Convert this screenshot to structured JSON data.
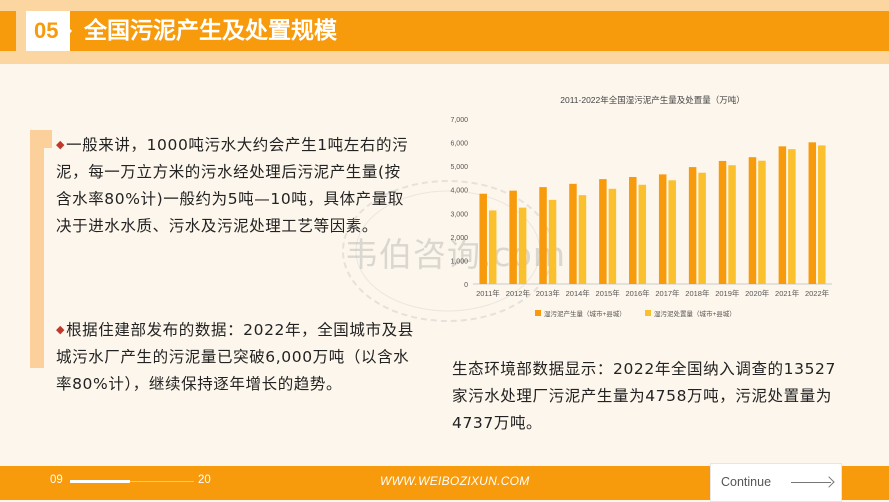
{
  "header": {
    "section_number": "05",
    "title": "全国污泥产生及处置规模"
  },
  "left_content": {
    "paragraph1": "一般来讲，1000吨污水大约会产生1吨左右的污泥，每一万立方米的污水经处理后污泥产生量(按含水率80%计)一般约为5吨—10吨，具体产量取决于进水水质、污水及污泥处理工艺等因素。",
    "paragraph2": "根据住建部发布的数据：2022年，全国城市及县城污水厂产生的污泥量已突破6,000万吨（以含水率80%计），继续保持逐年增长的趋势。",
    "bullet": "◆"
  },
  "watermark": {
    "text": "韦伯咨询.com"
  },
  "chart_data": {
    "type": "bar",
    "title": "2011-2022年全国湿污泥产生量及处置量（万吨）",
    "categories": [
      "2011年",
      "2012年",
      "2013年",
      "2014年",
      "2015年",
      "2016年",
      "2017年",
      "2018年",
      "2019年",
      "2020年",
      "2021年",
      "2022年"
    ],
    "series": [
      {
        "name": "湿污泥产生量（城市+县城）",
        "color": "#f79a0c",
        "values": [
          3830,
          3960,
          4110,
          4250,
          4450,
          4540,
          4650,
          4960,
          5220,
          5380,
          5840,
          6010
        ]
      },
      {
        "name": "湿污泥处置量（城市+县城）",
        "color": "#fbc02d",
        "values": [
          3120,
          3240,
          3570,
          3770,
          4040,
          4210,
          4400,
          4720,
          5040,
          5230,
          5720,
          5880
        ]
      }
    ],
    "y_ticks": [
      "0",
      "1,000",
      "2,000",
      "3,000",
      "4,000",
      "5,000",
      "6,000",
      "7,000"
    ],
    "ylim": [
      0,
      7000
    ],
    "grid": false,
    "legend": "bottom"
  },
  "right_content": {
    "paragraph": "生态环境部数据显示：2022年全国纳入调查的13527家污水处理厂污泥产生量为4758万吨，污泥处置量为4737万吨。"
  },
  "footer": {
    "page_current": "09",
    "page_total": "20",
    "website": "WWW.WEIBOZIXUN.COM",
    "continue_label": "Continue"
  }
}
